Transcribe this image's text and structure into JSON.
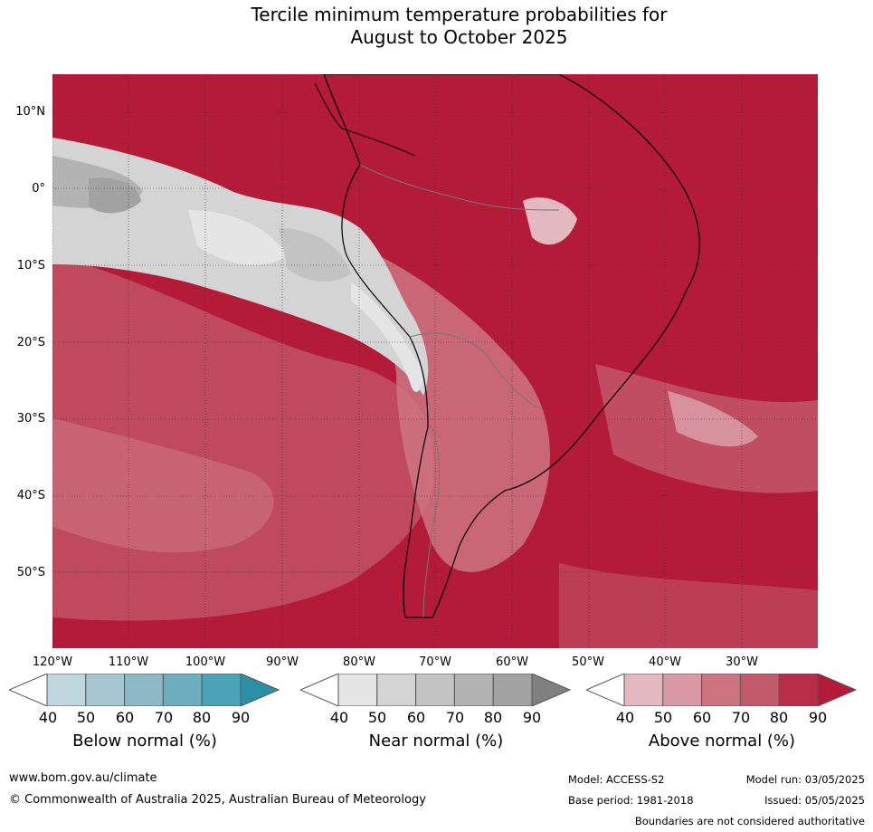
{
  "title": {
    "line1": "Tercile minimum temperature probabilities for",
    "line2": "August to October 2025"
  },
  "map": {
    "lat_labels": [
      "10°N",
      "0°",
      "10°S",
      "20°S",
      "30°S",
      "40°S",
      "50°S"
    ],
    "lon_labels": [
      "120°W",
      "110°W",
      "100°W",
      "90°W",
      "80°W",
      "70°W",
      "60°W",
      "50°W",
      "40°W",
      "30°W"
    ]
  },
  "colorbars": {
    "ticks": [
      "40",
      "50",
      "60",
      "70",
      "80",
      "90"
    ],
    "below": {
      "title": "Below normal (%)",
      "colors": [
        "#bfd7df",
        "#a6c7cf",
        "#8db9c6",
        "#6caebf",
        "#4aa3b6",
        "#2b8fa6"
      ]
    },
    "near": {
      "title": "Near normal (%)",
      "colors": [
        "#e5e5e5",
        "#d4d4d4",
        "#c3c3c3",
        "#b3b3b3",
        "#a2a2a2",
        "#808080"
      ]
    },
    "above": {
      "title": "Above normal (%)",
      "colors": [
        "#e3b8bf",
        "#d99aa5",
        "#cd7483",
        "#c35a6c",
        "#b92d48",
        "#b31b39"
      ]
    }
  },
  "footer": {
    "url": "www.bom.gov.au/climate",
    "copyright": "© Commonwealth of Australia 2025, Australian Bureau of Meteorology",
    "model": "Model: ACCESS-S2",
    "base_period": "Base period: 1981-2018",
    "model_run": "Model run: 03/05/2025",
    "issued": "Issued: 05/05/2025",
    "disclaimer": "Boundaries are not considered authoritative"
  }
}
